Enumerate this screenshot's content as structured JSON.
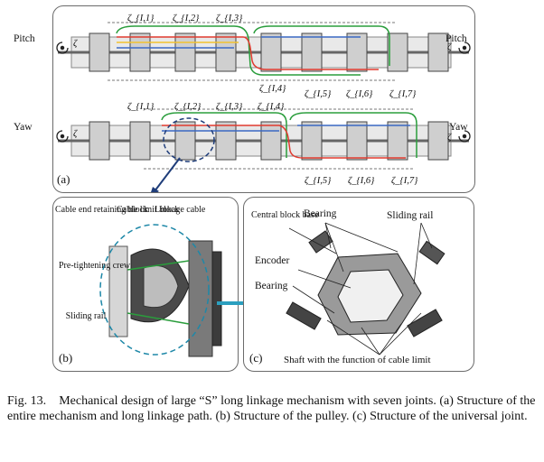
{
  "figure": {
    "panel_a": {
      "tag": "(a)",
      "pitch_left": "Pitch",
      "pitch_right": "Pitch",
      "yaw_left": "Yaw",
      "yaw_right": "Yaw",
      "joint_symbol": "ζ",
      "top_labels": [
        "ζ_{I,1}",
        "ζ_{I,2}",
        "ζ_{I,3}"
      ],
      "mid_labels": [
        "ζ_{I,4}",
        "ζ_{I,5}",
        "ζ_{I,6}",
        "ζ_{I,7}"
      ],
      "mid2_labels": [
        "ζ_{I,1}",
        "ζ_{I,2}",
        "ζ_{I,3}",
        "ζ_{I,4}"
      ],
      "bottom_labels": [
        "ζ_{I,5}",
        "ζ_{I,6}",
        "ζ_{I,7}"
      ]
    },
    "panel_b": {
      "tag": "(b)",
      "labels": [
        "Cable end retaining block",
        "Cable limit block",
        "Linkage cable",
        "Pre-tightening crew",
        "Sliding rail"
      ]
    },
    "panel_c": {
      "tag": "(c)",
      "labels": [
        "Central block base",
        "Bearing",
        "Sliding rail",
        "Encoder",
        "Bearing",
        "Shaft with the function of cable limit"
      ]
    }
  },
  "caption": {
    "label": "Fig. 13.",
    "text": "Mechanical design of large “S” long linkage mechanism with seven joints. (a) Structure of the entire mechanism and long linkage path. (b) Structure of the pulley. (c) Structure of the universal joint."
  }
}
